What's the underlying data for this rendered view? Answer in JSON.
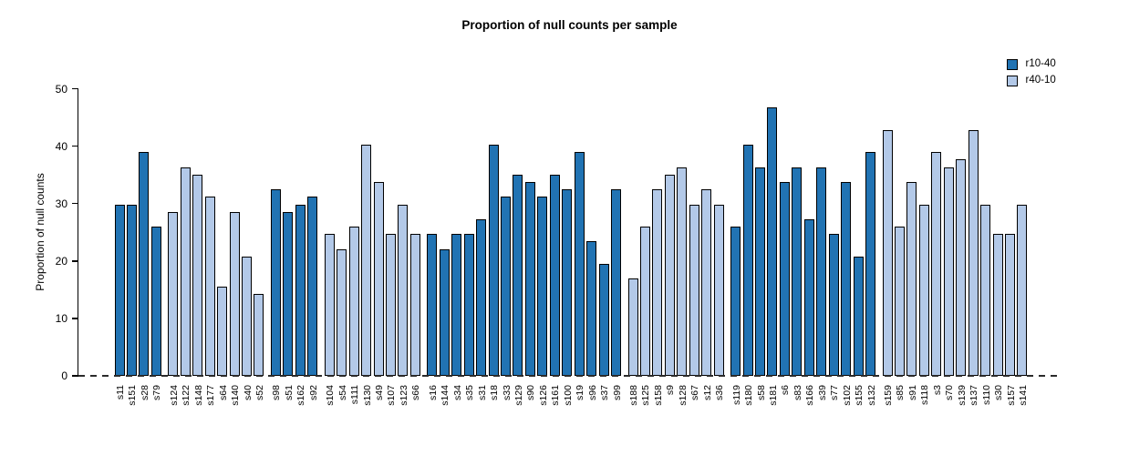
{
  "title": "Proportion of null counts per sample",
  "colors": {
    "dark": "#2173B3",
    "light": "#B3C9E8",
    "bar_border": "#000000",
    "axis": "#000000",
    "zero_dash": "#2b2b2b",
    "background": "#ffffff"
  },
  "legend": {
    "items": [
      {
        "label": "r10-40",
        "color_key": "dark"
      },
      {
        "label": "r40-10",
        "color_key": "light"
      }
    ]
  },
  "chart_data": {
    "type": "bar",
    "title": "Proportion of null counts per sample",
    "xlabel": "",
    "ylabel": "Proportion of null counts",
    "ylim": [
      0,
      50
    ],
    "yticks": [
      0,
      10,
      20,
      30,
      40,
      50
    ],
    "grid": false,
    "legend_position": "top-right",
    "zero_line_style": "dashed",
    "series": [
      {
        "name": "r10-40",
        "color_key": "dark"
      },
      {
        "name": "r40-10",
        "color_key": "light"
      }
    ],
    "samples": [
      {
        "id": "s11",
        "value": 29.87,
        "series": "r10-40"
      },
      {
        "id": "s151",
        "value": 29.87,
        "series": "r10-40"
      },
      {
        "id": "s28",
        "value": 38.96,
        "series": "r10-40"
      },
      {
        "id": "s79",
        "value": 25.97,
        "series": "r10-40"
      },
      {
        "id": "s124",
        "value": 28.57,
        "series": "r40-10"
      },
      {
        "id": "s122",
        "value": 36.36,
        "series": "r40-10"
      },
      {
        "id": "s148",
        "value": 35.06,
        "series": "r40-10"
      },
      {
        "id": "s177",
        "value": 31.17,
        "series": "r40-10"
      },
      {
        "id": "s64",
        "value": 15.58,
        "series": "r40-10"
      },
      {
        "id": "s140",
        "value": 28.57,
        "series": "r40-10"
      },
      {
        "id": "s40",
        "value": 20.78,
        "series": "r40-10"
      },
      {
        "id": "s52",
        "value": 14.29,
        "series": "r40-10"
      },
      {
        "id": "s98",
        "value": 32.47,
        "series": "r10-40"
      },
      {
        "id": "s51",
        "value": 28.57,
        "series": "r10-40"
      },
      {
        "id": "s162",
        "value": 29.87,
        "series": "r10-40"
      },
      {
        "id": "s92",
        "value": 31.17,
        "series": "r10-40"
      },
      {
        "id": "s104",
        "value": 24.68,
        "series": "r40-10"
      },
      {
        "id": "s54",
        "value": 22.08,
        "series": "r40-10"
      },
      {
        "id": "s111",
        "value": 25.97,
        "series": "r40-10"
      },
      {
        "id": "s130",
        "value": 40.26,
        "series": "r40-10"
      },
      {
        "id": "s49",
        "value": 33.77,
        "series": "r40-10"
      },
      {
        "id": "s107",
        "value": 24.68,
        "series": "r40-10"
      },
      {
        "id": "s123",
        "value": 29.87,
        "series": "r40-10"
      },
      {
        "id": "s66",
        "value": 24.68,
        "series": "r40-10"
      },
      {
        "id": "s16",
        "value": 24.68,
        "series": "r10-40"
      },
      {
        "id": "s144",
        "value": 22.08,
        "series": "r10-40"
      },
      {
        "id": "s34",
        "value": 24.68,
        "series": "r10-40"
      },
      {
        "id": "s35",
        "value": 24.68,
        "series": "r10-40"
      },
      {
        "id": "s31",
        "value": 27.27,
        "series": "r10-40"
      },
      {
        "id": "s18",
        "value": 40.26,
        "series": "r10-40"
      },
      {
        "id": "s33",
        "value": 31.17,
        "series": "r10-40"
      },
      {
        "id": "s129",
        "value": 35.06,
        "series": "r10-40"
      },
      {
        "id": "s90",
        "value": 33.77,
        "series": "r10-40"
      },
      {
        "id": "s126",
        "value": 31.17,
        "series": "r10-40"
      },
      {
        "id": "s161",
        "value": 35.06,
        "series": "r10-40"
      },
      {
        "id": "s100",
        "value": 32.47,
        "series": "r10-40"
      },
      {
        "id": "s19",
        "value": 38.96,
        "series": "r10-40"
      },
      {
        "id": "s96",
        "value": 23.38,
        "series": "r10-40"
      },
      {
        "id": "s37",
        "value": 19.48,
        "series": "r10-40"
      },
      {
        "id": "s99",
        "value": 32.47,
        "series": "r10-40"
      },
      {
        "id": "s188",
        "value": 16.88,
        "series": "r40-10"
      },
      {
        "id": "s125",
        "value": 25.97,
        "series": "r40-10"
      },
      {
        "id": "s158",
        "value": 32.47,
        "series": "r40-10"
      },
      {
        "id": "s9",
        "value": 35.06,
        "series": "r40-10"
      },
      {
        "id": "s128",
        "value": 36.36,
        "series": "r40-10"
      },
      {
        "id": "s67",
        "value": 29.87,
        "series": "r40-10"
      },
      {
        "id": "s12",
        "value": 32.47,
        "series": "r40-10"
      },
      {
        "id": "s36",
        "value": 29.87,
        "series": "r40-10"
      },
      {
        "id": "s119",
        "value": 25.97,
        "series": "r10-40"
      },
      {
        "id": "s180",
        "value": 40.26,
        "series": "r10-40"
      },
      {
        "id": "s58",
        "value": 36.36,
        "series": "r10-40"
      },
      {
        "id": "s181",
        "value": 46.75,
        "series": "r10-40"
      },
      {
        "id": "s6",
        "value": 33.77,
        "series": "r10-40"
      },
      {
        "id": "s83",
        "value": 36.36,
        "series": "r10-40"
      },
      {
        "id": "s166",
        "value": 27.27,
        "series": "r10-40"
      },
      {
        "id": "s39",
        "value": 36.36,
        "series": "r10-40"
      },
      {
        "id": "s77",
        "value": 24.68,
        "series": "r10-40"
      },
      {
        "id": "s102",
        "value": 33.77,
        "series": "r10-40"
      },
      {
        "id": "s155",
        "value": 20.78,
        "series": "r10-40"
      },
      {
        "id": "s132",
        "value": 38.96,
        "series": "r10-40"
      },
      {
        "id": "s159",
        "value": 42.86,
        "series": "r40-10"
      },
      {
        "id": "s85",
        "value": 25.97,
        "series": "r40-10"
      },
      {
        "id": "s91",
        "value": 33.77,
        "series": "r40-10"
      },
      {
        "id": "s118",
        "value": 29.87,
        "series": "r40-10"
      },
      {
        "id": "s3",
        "value": 38.96,
        "series": "r40-10"
      },
      {
        "id": "s70",
        "value": 36.36,
        "series": "r40-10"
      },
      {
        "id": "s139",
        "value": 37.66,
        "series": "r40-10"
      },
      {
        "id": "s137",
        "value": 42.86,
        "series": "r40-10"
      },
      {
        "id": "s110",
        "value": 29.87,
        "series": "r40-10"
      },
      {
        "id": "s30",
        "value": 24.68,
        "series": "r40-10"
      },
      {
        "id": "s157",
        "value": 24.68,
        "series": "r40-10"
      },
      {
        "id": "s141",
        "value": 29.87,
        "series": "r40-10"
      }
    ]
  }
}
